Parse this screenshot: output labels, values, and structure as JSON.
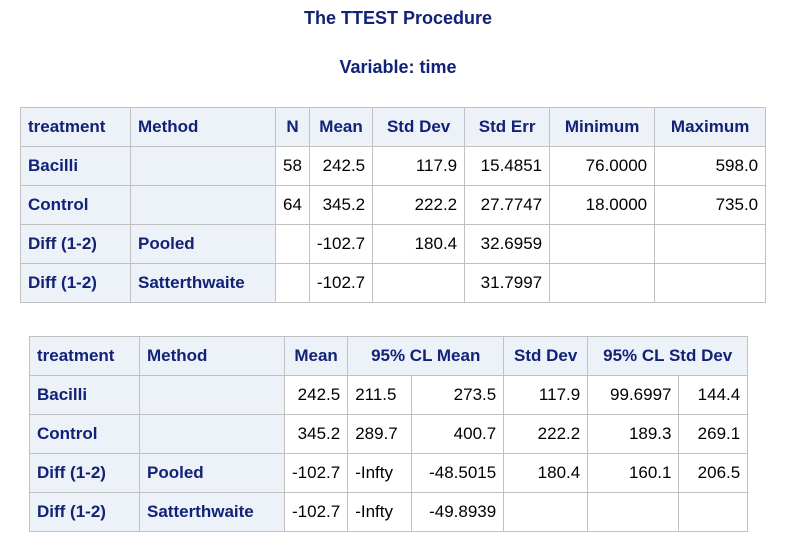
{
  "header": {
    "procedure_title": "The TTEST Procedure",
    "variable_title": "Variable: time"
  },
  "stats_table": {
    "columns": [
      "treatment",
      "Method",
      "N",
      "Mean",
      "Std Dev",
      "Std Err",
      "Minimum",
      "Maximum"
    ],
    "rows": [
      [
        "Bacilli",
        "",
        "58",
        "242.5",
        "117.9",
        "15.4851",
        "76.0000",
        "598.0"
      ],
      [
        "Control",
        "",
        "64",
        "345.2",
        "222.2",
        "27.7747",
        "18.0000",
        "735.0"
      ],
      [
        "Diff (1-2)",
        "Pooled",
        "",
        "-102.7",
        "180.4",
        "32.6959",
        "",
        ""
      ],
      [
        "Diff (1-2)",
        "Satterthwaite",
        "",
        "-102.7",
        "",
        "31.7997",
        "",
        ""
      ]
    ]
  },
  "ci_table": {
    "columns": [
      "treatment",
      "Method",
      "Mean",
      "95% CL Mean",
      "Std Dev",
      "95% CL Std Dev"
    ],
    "rows": [
      [
        "Bacilli",
        "",
        "242.5",
        "211.5",
        "273.5",
        "117.9",
        "99.6997",
        "144.4"
      ],
      [
        "Control",
        "",
        "345.2",
        "289.7",
        "400.7",
        "222.2",
        "189.3",
        "269.1"
      ],
      [
        "Diff (1-2)",
        "Pooled",
        "-102.7",
        "-Infty",
        "-48.5015",
        "180.4",
        "160.1",
        "206.5"
      ],
      [
        "Diff (1-2)",
        "Satterthwaite",
        "-102.7",
        "-Infty",
        "-49.8939",
        "",
        "",
        ""
      ]
    ]
  }
}
